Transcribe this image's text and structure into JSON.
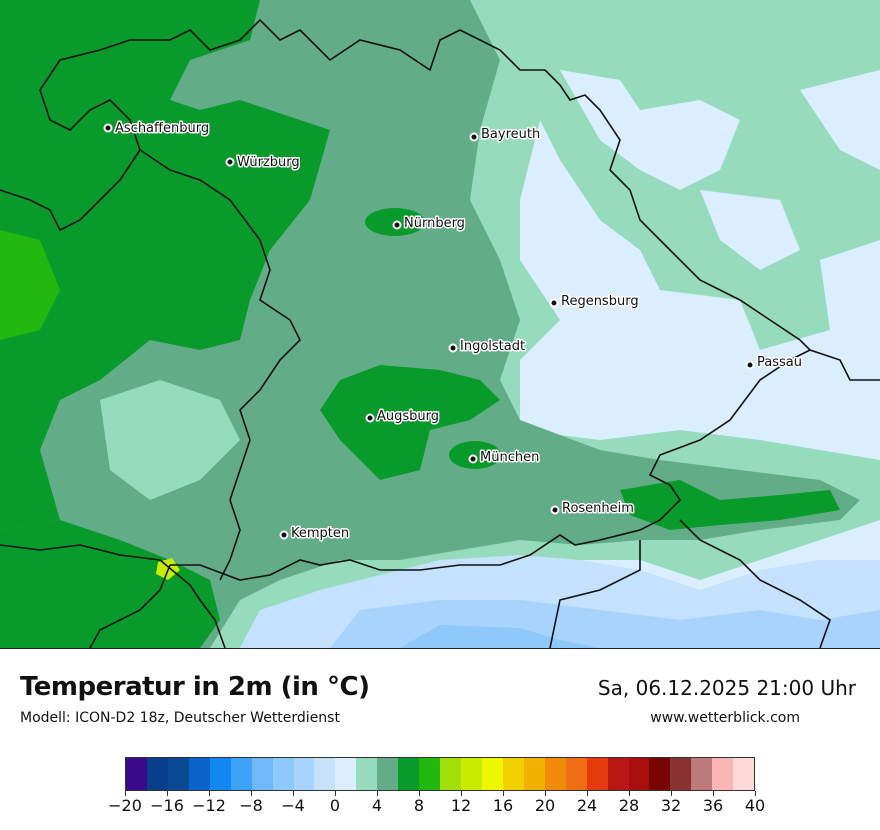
{
  "title": "Temperatur in 2m (in °C)",
  "model": "Modell: ICON-D2 18z, Deutscher Wetterdienst",
  "datetime": "Sa, 06.12.2025 21:00 Uhr",
  "website": "www.wetterblick.com",
  "cities": [
    {
      "name": "Aschaffenburg"
    },
    {
      "name": "Würzburg"
    },
    {
      "name": "Bayreuth"
    },
    {
      "name": "Nürnberg"
    },
    {
      "name": "Regensburg"
    },
    {
      "name": "Ingolstadt"
    },
    {
      "name": "Passau"
    },
    {
      "name": "Augsburg"
    },
    {
      "name": "München"
    },
    {
      "name": "Rosenheim"
    },
    {
      "name": "Kempten"
    }
  ],
  "legend": {
    "min": -20,
    "max": 40,
    "step": 2,
    "colors": [
      "#3b0a8c",
      "#063f8a",
      "#0a4a94",
      "#0a63c9",
      "#1188f0",
      "#3ea2f7",
      "#6fb8fa",
      "#8fc8fb",
      "#a8d3fc",
      "#c4e1fe",
      "#dbeeff",
      "#96dcbc",
      "#62ac88",
      "#089a2a",
      "#23b80f",
      "#a2de0a",
      "#c8ec00",
      "#eef600",
      "#f2cf00",
      "#f2b000",
      "#f18a0b",
      "#ef6e13",
      "#e63c0d",
      "#b91616",
      "#a80e0e",
      "#780303",
      "#8a3232",
      "#bd7a7a",
      "#fbb5b5",
      "#ffd8d8"
    ],
    "tick_labels": [
      "−20",
      "−16",
      "−12",
      "−8",
      "−4",
      "0",
      "4",
      "8",
      "12",
      "16",
      "20",
      "24",
      "28",
      "32",
      "36",
      "40"
    ]
  }
}
